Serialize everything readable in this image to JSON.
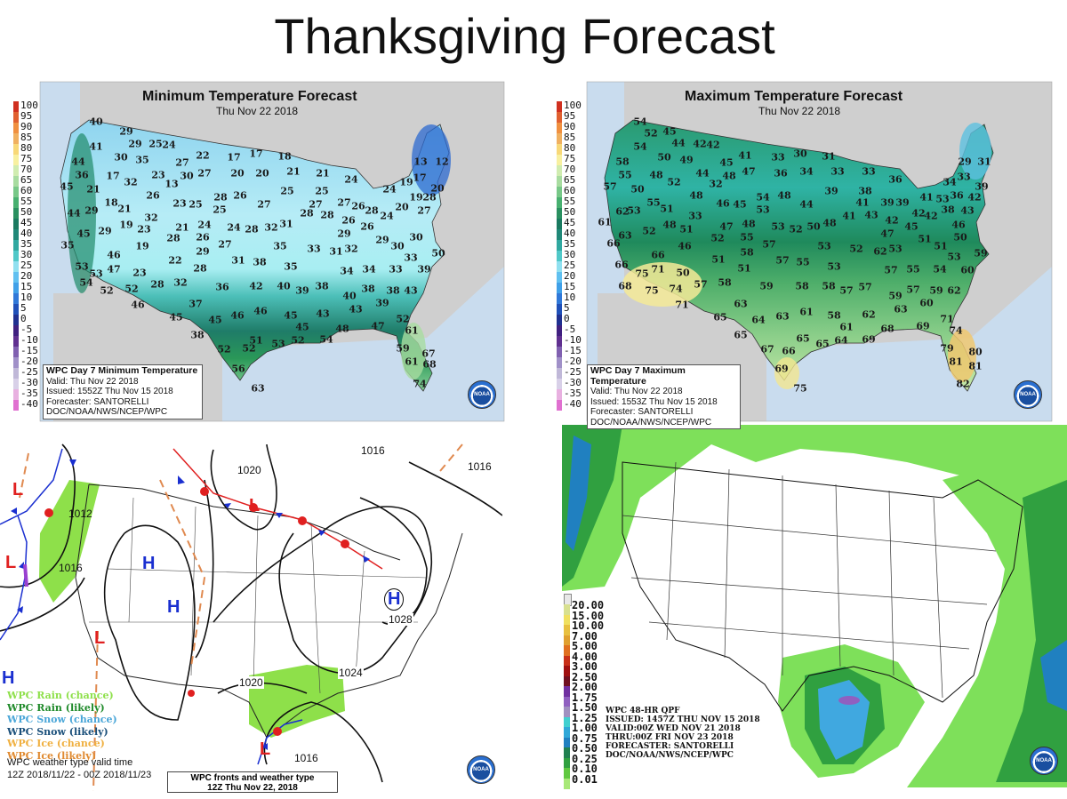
{
  "slide": {
    "title": "Thanksgiving Forecast"
  },
  "temp_legend": [
    {
      "label": "100",
      "color": "#d03020"
    },
    {
      "label": "95",
      "color": "#e06030"
    },
    {
      "label": "90",
      "color": "#f09040"
    },
    {
      "label": "85",
      "color": "#f0b060"
    },
    {
      "label": "80",
      "color": "#f8d878"
    },
    {
      "label": "75",
      "color": "#f8f0a0"
    },
    {
      "label": "70",
      "color": "#d0ecb0"
    },
    {
      "label": "65",
      "color": "#a8dca0"
    },
    {
      "label": "60",
      "color": "#78c888"
    },
    {
      "label": "55",
      "color": "#48b070"
    },
    {
      "label": "50",
      "color": "#2a9060"
    },
    {
      "label": "45",
      "color": "#1a7a60"
    },
    {
      "label": "40",
      "color": "#208878"
    },
    {
      "label": "35",
      "color": "#30a8a0"
    },
    {
      "label": "30",
      "color": "#50c8c8"
    },
    {
      "label": "25",
      "color": "#90e0f0"
    },
    {
      "label": "20",
      "color": "#60c0f0"
    },
    {
      "label": "15",
      "color": "#40a0e8"
    },
    {
      "label": "10",
      "color": "#3078d8"
    },
    {
      "label": "5",
      "color": "#2050b8"
    },
    {
      "label": "0",
      "color": "#203090"
    },
    {
      "label": "-5",
      "color": "#402080"
    },
    {
      "label": "-10",
      "color": "#603090"
    },
    {
      "label": "-15",
      "color": "#8060b0"
    },
    {
      "label": "-20",
      "color": "#a090c8"
    },
    {
      "label": "-25",
      "color": "#c0b8d8"
    },
    {
      "label": "-30",
      "color": "#d8d0e8"
    },
    {
      "label": "-35",
      "color": "#e8b0e0"
    },
    {
      "label": "-40",
      "color": "#e070d0"
    }
  ],
  "min_map": {
    "title": "Minimum Temperature Forecast",
    "date": "Thu Nov 22 2018",
    "info": {
      "heading": "WPC Day 7 Minimum Temperature",
      "valid": "Valid: Thu Nov 22 2018",
      "issued": "Issued: 1552Z Thu Nov 15 2018",
      "forecaster": "Forecaster: SANTORELLI",
      "org": "DOC/NOAA/NWS/NCEP/WPC"
    },
    "logo": "NOAA",
    "temps": [
      40,
      29,
      29,
      25,
      24,
      22,
      17,
      17,
      18,
      41,
      30,
      35,
      27,
      44,
      36,
      17,
      23,
      30,
      27,
      20,
      20,
      21,
      13,
      12,
      45,
      32,
      13,
      21,
      24,
      19,
      17,
      20,
      21,
      26,
      28,
      26,
      25,
      25,
      24,
      18,
      21,
      29,
      23,
      25,
      25,
      27,
      27,
      27,
      20,
      19,
      28,
      44,
      32,
      28,
      28,
      26,
      28,
      27,
      24,
      19,
      23,
      21,
      24,
      24,
      28,
      32,
      31,
      26,
      26,
      29,
      45,
      28,
      26,
      29,
      30,
      35,
      19,
      27,
      35,
      33,
      29,
      31,
      32,
      30,
      29,
      46,
      31,
      38,
      22,
      50,
      33,
      35,
      28,
      53,
      53,
      47,
      23,
      34,
      34,
      33,
      39,
      54,
      28,
      32,
      36,
      42,
      40,
      39,
      38,
      38,
      43,
      52,
      52,
      40,
      38,
      39,
      37,
      46,
      43,
      46,
      46,
      45,
      43,
      45,
      45,
      52,
      45,
      48,
      47,
      61,
      38,
      51,
      52,
      53,
      52,
      54,
      52,
      59,
      67,
      61,
      68,
      56,
      74,
      63
    ]
  },
  "max_map": {
    "title": "Maximum Temperature Forecast",
    "date": "Thu Nov 22 2018",
    "info": {
      "heading": "WPC Day 7 Maximum Temperature",
      "valid": "Valid: Thu Nov 22 2018",
      "issued": "Issued: 1553Z Thu Nov 15 2018",
      "forecaster": "Forecaster: SANTORELLI",
      "org": "DOC/NOAA/NWS/NCEP/WPC"
    },
    "logo": "NOAA",
    "temps": [
      54,
      52,
      45,
      44,
      42,
      42,
      54,
      50,
      49,
      45,
      41,
      33,
      30,
      31,
      58,
      55,
      48,
      52,
      44,
      48,
      47,
      36,
      34,
      33,
      33,
      36,
      29,
      31,
      57,
      50,
      32,
      54,
      48,
      44,
      39,
      38,
      34,
      33,
      39,
      48,
      55,
      51,
      53,
      46,
      45,
      53,
      41,
      41,
      43,
      39,
      39,
      42,
      41,
      53,
      38,
      36,
      42,
      43,
      62,
      61,
      33,
      42,
      45,
      42,
      52,
      48,
      51,
      47,
      48,
      53,
      52,
      50,
      48,
      46,
      63,
      66,
      52,
      55,
      47,
      50,
      46,
      57,
      53,
      52,
      62,
      53,
      51,
      51,
      58,
      66,
      59,
      51,
      57,
      55,
      53,
      66,
      75,
      71,
      50,
      51,
      53,
      57,
      55,
      54,
      60,
      68,
      57,
      58,
      59,
      58,
      58,
      57,
      57,
      59,
      57,
      60,
      59,
      62,
      75,
      74,
      71,
      63,
      63,
      61,
      63,
      64,
      58,
      62,
      65,
      71,
      61,
      68,
      69,
      74,
      65,
      65,
      66,
      65,
      64,
      69,
      67,
      79,
      80,
      81,
      81,
      69,
      82,
      75
    ]
  },
  "fronts_map": {
    "isobars": [
      "1020",
      "1016",
      "1016",
      "1012",
      "1016",
      "1028",
      "1024",
      "1020",
      "1016"
    ],
    "highs": [
      "H",
      "H",
      "H",
      "H"
    ],
    "lows": [
      "L",
      "L",
      "L",
      "L",
      "L"
    ],
    "legend": [
      {
        "label": "WPC Rain (chance)",
        "color": "#8ee04a"
      },
      {
        "label": "WPC Rain (likely)",
        "color": "#1f8a2a"
      },
      {
        "label": "WPC Snow (chance)",
        "color": "#4aa6d8"
      },
      {
        "label": "WPC Snow (likely)",
        "color": "#1a4f7a"
      },
      {
        "label": "WPC Ice (chance)",
        "color": "#f0b040"
      },
      {
        "label": "WPC Ice (likely)",
        "color": "#e08a30"
      }
    ],
    "valid_line1": "WPC weather type valid time",
    "valid_line2": "12Z 2018/11/22 - 00Z 2018/11/23",
    "title_line1": "WPC fronts and weather type",
    "title_line2": "12Z Thu Nov 22, 2018",
    "logo": "NOAA",
    "colors": {
      "high": "#1a2fd0",
      "low": "#e02020",
      "rain": "#8ee04a",
      "cold_front": "#1a2fd0",
      "warm_front": "#e02020",
      "trough": "#e08a50"
    }
  },
  "qpf_map": {
    "legend": [
      {
        "label": "20.00",
        "color": "#d8e090"
      },
      {
        "label": "15.00",
        "color": "#f0e060"
      },
      {
        "label": "10.00",
        "color": "#e8c040"
      },
      {
        "label": "7.00",
        "color": "#e0a030"
      },
      {
        "label": "5.00",
        "color": "#e07020"
      },
      {
        "label": "4.00",
        "color": "#c83018"
      },
      {
        "label": "3.00",
        "color": "#a01010"
      },
      {
        "label": "2.50",
        "color": "#701020"
      },
      {
        "label": "2.00",
        "color": "#7030a0"
      },
      {
        "label": "1.75",
        "color": "#9060c0"
      },
      {
        "label": "1.50",
        "color": "#a090c0"
      },
      {
        "label": "1.25",
        "color": "#40d0d0"
      },
      {
        "label": "1.00",
        "color": "#30a8d8"
      },
      {
        "label": "0.75",
        "color": "#2080c0"
      },
      {
        "label": "0.50",
        "color": "#208050"
      },
      {
        "label": "0.25",
        "color": "#30a040"
      },
      {
        "label": "0.10",
        "color": "#60c840"
      },
      {
        "label": "0.01",
        "color": "#a8e878"
      }
    ],
    "info": [
      "WPC 48-HR QPF",
      "ISSUED: 1457Z THU NOV 15 2018",
      "VALID:00Z WED NOV 21 2018",
      "THRU:00Z FRI NOV 23 2018",
      "FORECASTER: SANTORELLI",
      "DOC/NOAA/NWS/NCEP/WPC"
    ],
    "logo": "NOAA"
  }
}
